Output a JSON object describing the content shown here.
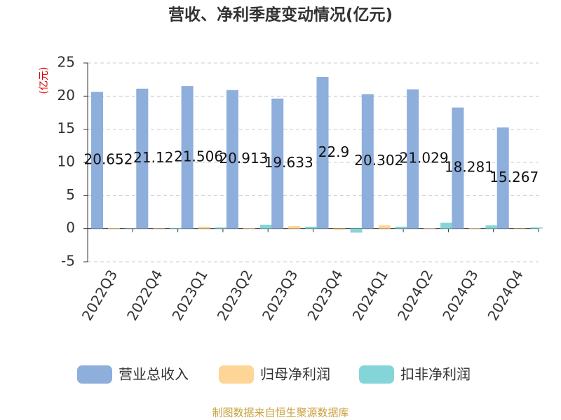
{
  "chart_data": {
    "type": "bar",
    "title": "营收、净利季度变动情况(亿元)",
    "y_label": "(亿元)",
    "categories": [
      "2022Q3",
      "2022Q4",
      "2023Q1",
      "2023Q2",
      "2023Q3",
      "2023Q4",
      "2024Q1",
      "2024Q2",
      "2024Q3",
      "2024Q4"
    ],
    "series": [
      {
        "name": "营业总收入",
        "color": "#8eaedc",
        "values": [
          20.652,
          21.12,
          21.506,
          20.913,
          19.633,
          22.9,
          20.302,
          21.029,
          18.281,
          15.267
        ],
        "show_labels": true
      },
      {
        "name": "归母净利润",
        "color": "#fdd596",
        "values": [
          0.1,
          0.05,
          0.3,
          0.1,
          0.4,
          -0.2,
          0.5,
          0.1,
          0.1,
          -0.1
        ],
        "show_labels": false
      },
      {
        "name": "扣非净利润",
        "color": "#84d5d8",
        "values": [
          0.05,
          0.1,
          0.2,
          0.6,
          0.3,
          -0.6,
          0.3,
          0.9,
          0.5,
          0.2
        ],
        "show_labels": false
      }
    ],
    "ylim": [
      -5,
      25
    ],
    "yticks": [
      -5,
      0,
      5,
      10,
      15,
      20,
      25
    ],
    "grid": true,
    "source": "制图数据来自恒生聚源数据库"
  }
}
